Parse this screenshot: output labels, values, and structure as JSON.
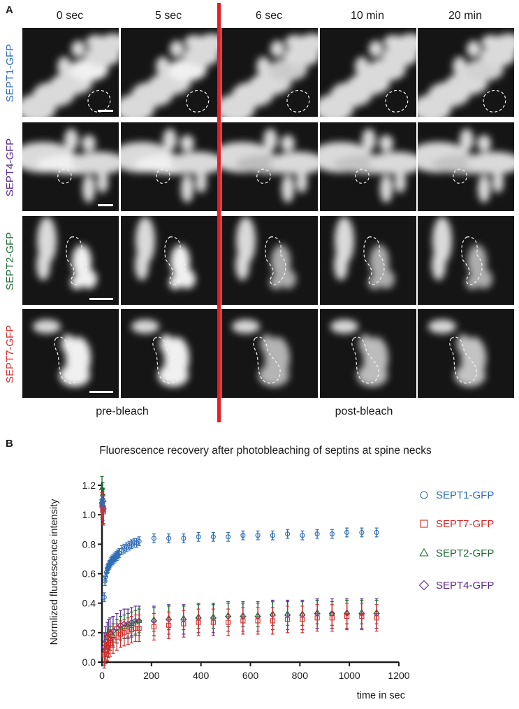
{
  "panel_a": {
    "letter": "A",
    "columns": [
      "0 sec",
      "5 sec",
      "6 sec",
      "10 min",
      "20 min"
    ],
    "rows": [
      {
        "label": "SEPT1-GFP",
        "color": "#2f6db5"
      },
      {
        "label": "SEPT4-GFP",
        "color": "#5b2c8e"
      },
      {
        "label": "SEPT2-GFP",
        "color": "#1f6b35"
      },
      {
        "label": "SEPT7-GFP",
        "color": "#d42a2a"
      }
    ],
    "pre_label": "pre-bleach",
    "post_label": "post-bleach",
    "bleach_line_color": "#e01e25"
  },
  "panel_b": {
    "letter": "B",
    "title": "Fluorescence recovery after photobleaching of septins at spine necks"
  },
  "chart_data": {
    "type": "scatter",
    "xlabel": "time in sec",
    "ylabel": "Normlized fluorescence intensity",
    "xlim": [
      0,
      1200
    ],
    "ylim": [
      0,
      1.2
    ],
    "xticks": [
      0,
      200,
      400,
      600,
      800,
      1000,
      1200
    ],
    "yticks": [
      0.0,
      0.2,
      0.4,
      0.6,
      0.8,
      1.0,
      1.2
    ],
    "legend_position": "right",
    "series": [
      {
        "name": "SEPT1-GFP",
        "marker": "circle",
        "color": "#2f6db5",
        "points": [
          [
            0,
            1.1
          ],
          [
            3,
            1.08
          ],
          [
            6,
            1.05
          ],
          [
            9,
            0.44
          ],
          [
            12,
            0.55
          ],
          [
            15,
            0.58
          ],
          [
            18,
            0.61
          ],
          [
            21,
            0.63
          ],
          [
            24,
            0.64
          ],
          [
            27,
            0.65
          ],
          [
            30,
            0.66
          ],
          [
            33,
            0.67
          ],
          [
            36,
            0.68
          ],
          [
            39,
            0.69
          ],
          [
            42,
            0.69
          ],
          [
            45,
            0.7
          ],
          [
            48,
            0.7
          ],
          [
            51,
            0.71
          ],
          [
            54,
            0.71
          ],
          [
            57,
            0.72
          ],
          [
            60,
            0.72
          ],
          [
            63,
            0.73
          ],
          [
            66,
            0.73
          ],
          [
            70,
            0.74
          ],
          [
            80,
            0.76
          ],
          [
            90,
            0.77
          ],
          [
            100,
            0.78
          ],
          [
            110,
            0.79
          ],
          [
            120,
            0.8
          ],
          [
            130,
            0.81
          ],
          [
            140,
            0.81
          ],
          [
            150,
            0.82
          ],
          [
            210,
            0.84
          ],
          [
            270,
            0.84
          ],
          [
            330,
            0.84
          ],
          [
            390,
            0.85
          ],
          [
            450,
            0.85
          ],
          [
            510,
            0.85
          ],
          [
            570,
            0.86
          ],
          [
            630,
            0.86
          ],
          [
            690,
            0.86
          ],
          [
            750,
            0.87
          ],
          [
            810,
            0.86
          ],
          [
            870,
            0.87
          ],
          [
            930,
            0.87
          ],
          [
            990,
            0.88
          ],
          [
            1050,
            0.88
          ],
          [
            1110,
            0.88
          ]
        ],
        "err": 0.03
      },
      {
        "name": "SEPT7-GFP",
        "marker": "square",
        "color": "#d42a2a",
        "points": [
          [
            0,
            1.06
          ],
          [
            3,
            1.03
          ],
          [
            6,
            1.02
          ],
          [
            9,
            0.05
          ],
          [
            15,
            0.08
          ],
          [
            21,
            0.1
          ],
          [
            27,
            0.12
          ],
          [
            33,
            0.13
          ],
          [
            45,
            0.15
          ],
          [
            60,
            0.17
          ],
          [
            75,
            0.19
          ],
          [
            90,
            0.2
          ],
          [
            105,
            0.21
          ],
          [
            120,
            0.22
          ],
          [
            135,
            0.23
          ],
          [
            150,
            0.23
          ],
          [
            210,
            0.24
          ],
          [
            270,
            0.25
          ],
          [
            330,
            0.26
          ],
          [
            390,
            0.27
          ],
          [
            450,
            0.27
          ],
          [
            510,
            0.27
          ],
          [
            570,
            0.28
          ],
          [
            630,
            0.28
          ],
          [
            690,
            0.28
          ],
          [
            750,
            0.29
          ],
          [
            810,
            0.29
          ],
          [
            870,
            0.3
          ],
          [
            930,
            0.3
          ],
          [
            990,
            0.31
          ],
          [
            1050,
            0.31
          ],
          [
            1110,
            0.3
          ]
        ],
        "err": 0.09
      },
      {
        "name": "SEPT2-GFP",
        "marker": "triangle",
        "color": "#1f6b35",
        "points": [
          [
            0,
            1.18
          ],
          [
            3,
            1.14
          ],
          [
            6,
            1.1
          ],
          [
            9,
            0.06
          ],
          [
            15,
            0.1
          ],
          [
            21,
            0.12
          ],
          [
            27,
            0.14
          ],
          [
            33,
            0.16
          ],
          [
            45,
            0.18
          ],
          [
            60,
            0.21
          ],
          [
            75,
            0.23
          ],
          [
            90,
            0.24
          ],
          [
            105,
            0.25
          ],
          [
            120,
            0.26
          ],
          [
            135,
            0.27
          ],
          [
            150,
            0.28
          ],
          [
            210,
            0.29
          ],
          [
            270,
            0.3
          ],
          [
            330,
            0.3
          ],
          [
            390,
            0.31
          ],
          [
            450,
            0.31
          ],
          [
            510,
            0.32
          ],
          [
            570,
            0.32
          ],
          [
            630,
            0.32
          ],
          [
            690,
            0.33
          ],
          [
            750,
            0.33
          ],
          [
            810,
            0.33
          ],
          [
            870,
            0.34
          ],
          [
            930,
            0.33
          ],
          [
            990,
            0.34
          ],
          [
            1050,
            0.34
          ],
          [
            1110,
            0.34
          ]
        ],
        "err": 0.08
      },
      {
        "name": "SEPT4-GFP",
        "marker": "diamond",
        "color": "#5b2c8e",
        "points": [
          [
            0,
            1.08
          ],
          [
            3,
            1.06
          ],
          [
            6,
            1.04
          ],
          [
            9,
            0.1
          ],
          [
            15,
            0.14
          ],
          [
            21,
            0.17
          ],
          [
            27,
            0.19
          ],
          [
            33,
            0.2
          ],
          [
            45,
            0.21
          ],
          [
            60,
            0.23
          ],
          [
            75,
            0.25
          ],
          [
            90,
            0.26
          ],
          [
            105,
            0.26
          ],
          [
            120,
            0.27
          ],
          [
            135,
            0.28
          ],
          [
            150,
            0.28
          ],
          [
            210,
            0.28
          ],
          [
            270,
            0.29
          ],
          [
            330,
            0.29
          ],
          [
            390,
            0.3
          ],
          [
            450,
            0.3
          ],
          [
            510,
            0.31
          ],
          [
            570,
            0.31
          ],
          [
            630,
            0.31
          ],
          [
            690,
            0.32
          ],
          [
            750,
            0.32
          ],
          [
            810,
            0.32
          ],
          [
            870,
            0.33
          ],
          [
            930,
            0.33
          ],
          [
            990,
            0.33
          ],
          [
            1050,
            0.33
          ],
          [
            1110,
            0.33
          ]
        ],
        "err": 0.1
      }
    ]
  }
}
